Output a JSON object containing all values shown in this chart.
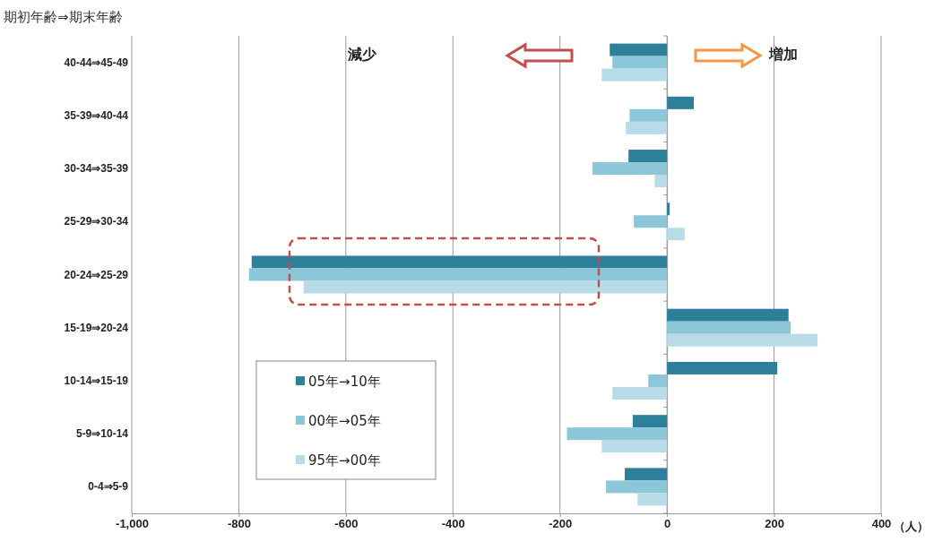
{
  "chart_data": {
    "type": "bar",
    "orientation": "horizontal",
    "ylabel": "期初年齢⇒期末年齢",
    "xlabel": "（人）",
    "categories": [
      "40-44⇒45-49",
      "35-39⇒40-44",
      "30-34⇒35-39",
      "25-29⇒30-34",
      "20-24⇒25-29",
      "15-19⇒20-24",
      "10-14⇒15-19",
      "5-9⇒10-14",
      "0-4⇒5-9"
    ],
    "series": [
      {
        "name": "05年→10年",
        "color": "#2e7f99",
        "values": [
          -107,
          50,
          -72,
          5,
          -776,
          227,
          206,
          -64,
          -79
        ]
      },
      {
        "name": "00年→05年",
        "color": "#8cc6d9",
        "values": [
          -102,
          -70,
          -139,
          -62,
          -781,
          231,
          -35,
          -187,
          -114
        ]
      },
      {
        "name": "95年→00年",
        "color": "#b7dce8",
        "values": [
          -122,
          -77,
          -23,
          33,
          -679,
          281,
          -102,
          -122,
          -55
        ]
      }
    ],
    "xlim": [
      -1000,
      400
    ],
    "xticks": [
      {
        "value": -1000,
        "label": "-1,000"
      },
      -800,
      -600,
      -400,
      -200,
      0,
      200,
      400
    ],
    "grid": "x",
    "legend": "bottom left",
    "annotations": [
      "減少",
      "増加"
    ]
  }
}
